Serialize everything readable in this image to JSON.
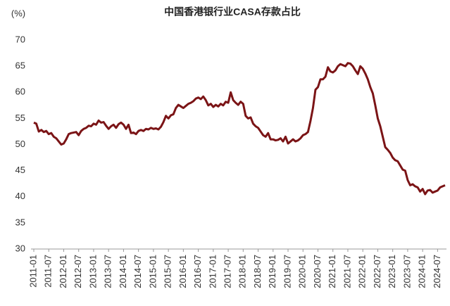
{
  "chart_data": {
    "type": "line",
    "title": "中国香港银行业CASA存款占比",
    "unit": "(%)",
    "categories": [
      "2011-01",
      null,
      null,
      null,
      null,
      null,
      "2011-07",
      null,
      null,
      null,
      null,
      null,
      "2012-01",
      null,
      null,
      null,
      null,
      null,
      "2012-07",
      null,
      null,
      null,
      null,
      null,
      "2013-01",
      null,
      null,
      null,
      null,
      null,
      "2013-07",
      null,
      null,
      null,
      null,
      null,
      "2014-01",
      null,
      null,
      null,
      null,
      null,
      "2014-07",
      null,
      null,
      null,
      null,
      null,
      "2015-01",
      null,
      null,
      null,
      null,
      null,
      "2015-07",
      null,
      null,
      null,
      null,
      null,
      "2016-01",
      null,
      null,
      null,
      null,
      null,
      "2016-07",
      null,
      null,
      null,
      null,
      null,
      "2017-01",
      null,
      null,
      null,
      null,
      null,
      "2017-07",
      null,
      null,
      null,
      null,
      null,
      "2018-01",
      null,
      null,
      null,
      null,
      null,
      "2018-07",
      null,
      null,
      null,
      null,
      null,
      "2019-01",
      null,
      null,
      null,
      null,
      null,
      "2019-07",
      null,
      null,
      null,
      null,
      null,
      "2020-01",
      null,
      null,
      null,
      null,
      null,
      "2020-07",
      null,
      null,
      null,
      null,
      null,
      "2021-01",
      null,
      null,
      null,
      null,
      null,
      "2021-07",
      null,
      null,
      null,
      null,
      null,
      "2022-01",
      null,
      null,
      null,
      null,
      null,
      "2022-07",
      null,
      null,
      null,
      null,
      null,
      "2023-01",
      null,
      null,
      null,
      null,
      null,
      "2023-07",
      null,
      null,
      null,
      null,
      null,
      "2024-01",
      null,
      null,
      null,
      null,
      null,
      "2024-07",
      null,
      null,
      null
    ],
    "values": [
      54.2,
      54.0,
      52.5,
      52.8,
      52.4,
      52.6,
      52.0,
      52.2,
      51.5,
      51.2,
      50.6,
      50.0,
      50.2,
      51.0,
      52.0,
      52.2,
      52.3,
      52.4,
      51.8,
      52.6,
      53.0,
      53.2,
      53.6,
      53.5,
      54.0,
      53.8,
      54.6,
      54.2,
      54.3,
      53.6,
      53.0,
      53.5,
      53.8,
      53.2,
      53.9,
      54.2,
      53.8,
      53.0,
      53.8,
      52.2,
      52.3,
      52.0,
      52.6,
      52.8,
      52.6,
      53.0,
      52.9,
      53.2,
      53.0,
      53.1,
      52.9,
      53.4,
      54.3,
      55.5,
      55.0,
      55.6,
      55.8,
      57.0,
      57.6,
      57.3,
      57.0,
      57.4,
      57.8,
      58.0,
      58.3,
      58.8,
      59.0,
      58.7,
      59.2,
      58.5,
      57.5,
      57.8,
      57.2,
      57.6,
      57.3,
      57.8,
      57.5,
      58.2,
      58.0,
      60.0,
      58.5,
      58.0,
      57.6,
      58.2,
      57.8,
      55.5,
      55.0,
      55.2,
      54.0,
      53.5,
      53.2,
      52.5,
      51.8,
      51.5,
      52.2,
      51.0,
      51.0,
      50.8,
      50.9,
      51.2,
      50.6,
      51.5,
      50.2,
      50.6,
      51.0,
      50.6,
      50.8,
      51.2,
      51.8,
      52.0,
      52.4,
      54.5,
      57.0,
      60.5,
      61.0,
      62.5,
      62.5,
      63.0,
      64.8,
      64.0,
      63.8,
      64.2,
      65.0,
      65.4,
      65.2,
      65.0,
      65.6,
      65.5,
      65.0,
      64.2,
      63.5,
      65.0,
      64.5,
      63.6,
      62.5,
      61.0,
      59.8,
      57.5,
      55.0,
      53.5,
      51.5,
      49.5,
      49.0,
      48.4,
      47.5,
      47.0,
      46.8,
      46.0,
      45.2,
      45.0,
      43.2,
      42.2,
      42.4,
      42.0,
      41.8,
      41.0,
      41.5,
      40.5,
      41.2,
      41.3,
      40.8,
      41.0,
      41.2,
      41.8,
      42.0,
      42.2
    ],
    "color": "#7b1416",
    "ylim": [
      30,
      70
    ],
    "yticks": [
      30,
      35,
      40,
      45,
      50,
      55,
      60,
      65,
      70
    ],
    "grid": false
  }
}
